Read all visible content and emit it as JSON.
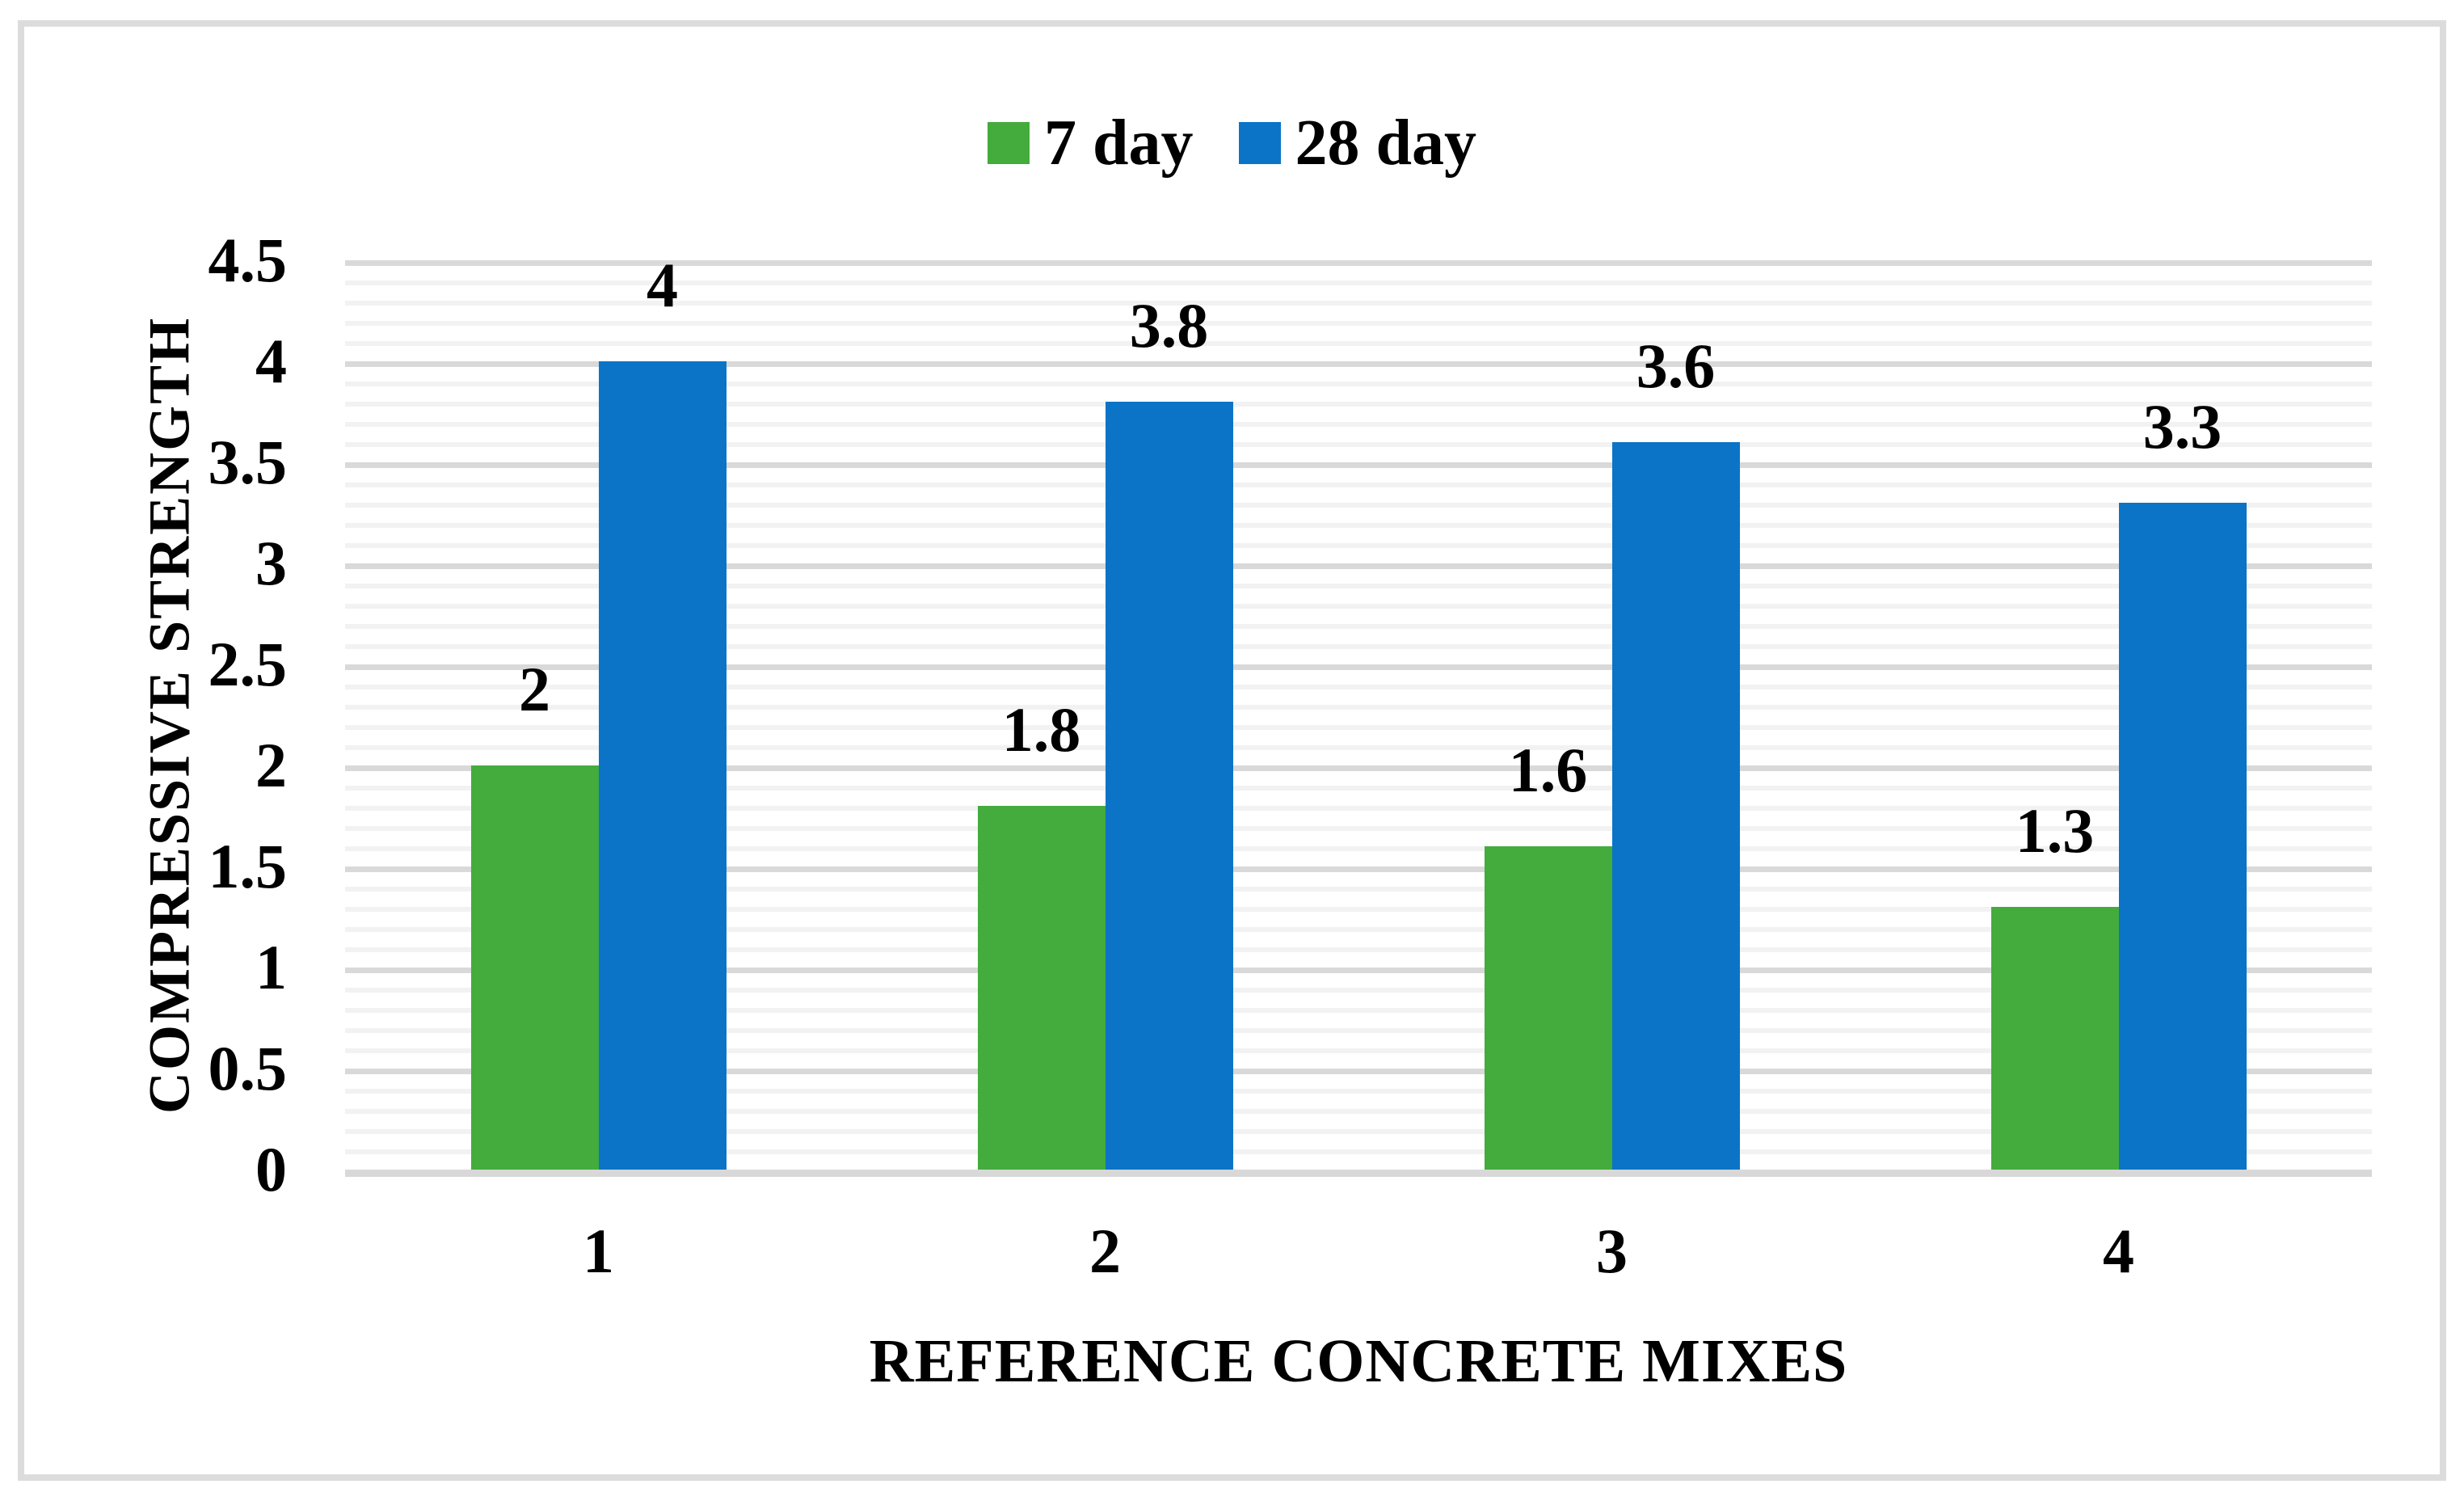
{
  "colors": {
    "series_7day_green": "#43AC3C",
    "series_28day_blue": "#0B74C6",
    "grid_major": "#D9D9D9",
    "grid_minor": "#F2F2F2",
    "axis_line": "#D8D8D8",
    "figure_border": "#DCDCDC",
    "text": "#000000",
    "background": "#FFFFFF"
  },
  "chart_data": {
    "type": "bar",
    "title": "",
    "categories": [
      "1",
      "2",
      "3",
      "4"
    ],
    "series": [
      {
        "name": "7 day",
        "color": "#43AC3C",
        "values": [
          2,
          1.8,
          1.6,
          1.3
        ],
        "data_labels": [
          "2",
          "1.8",
          "1.6",
          "1.3"
        ]
      },
      {
        "name": "28 day",
        "color": "#0B74C6",
        "values": [
          4,
          3.8,
          3.6,
          3.3
        ],
        "data_labels": [
          "4",
          "3.8",
          "3.6",
          "3.3"
        ]
      }
    ],
    "xlabel": "REFERENCE CONCRETE MIXES",
    "ylabel": "COMPRESSIVE STRENGTH",
    "ylim": [
      0,
      4.5
    ],
    "yticks": [
      "0",
      "0.5",
      "1",
      "1.5",
      "2",
      "2.5",
      "3",
      "3.5",
      "4",
      "4.5"
    ],
    "y_major_unit": 0.5,
    "y_minor_unit": 0.1,
    "legend_position": "top-center",
    "grid": "horizontal major+minor"
  }
}
